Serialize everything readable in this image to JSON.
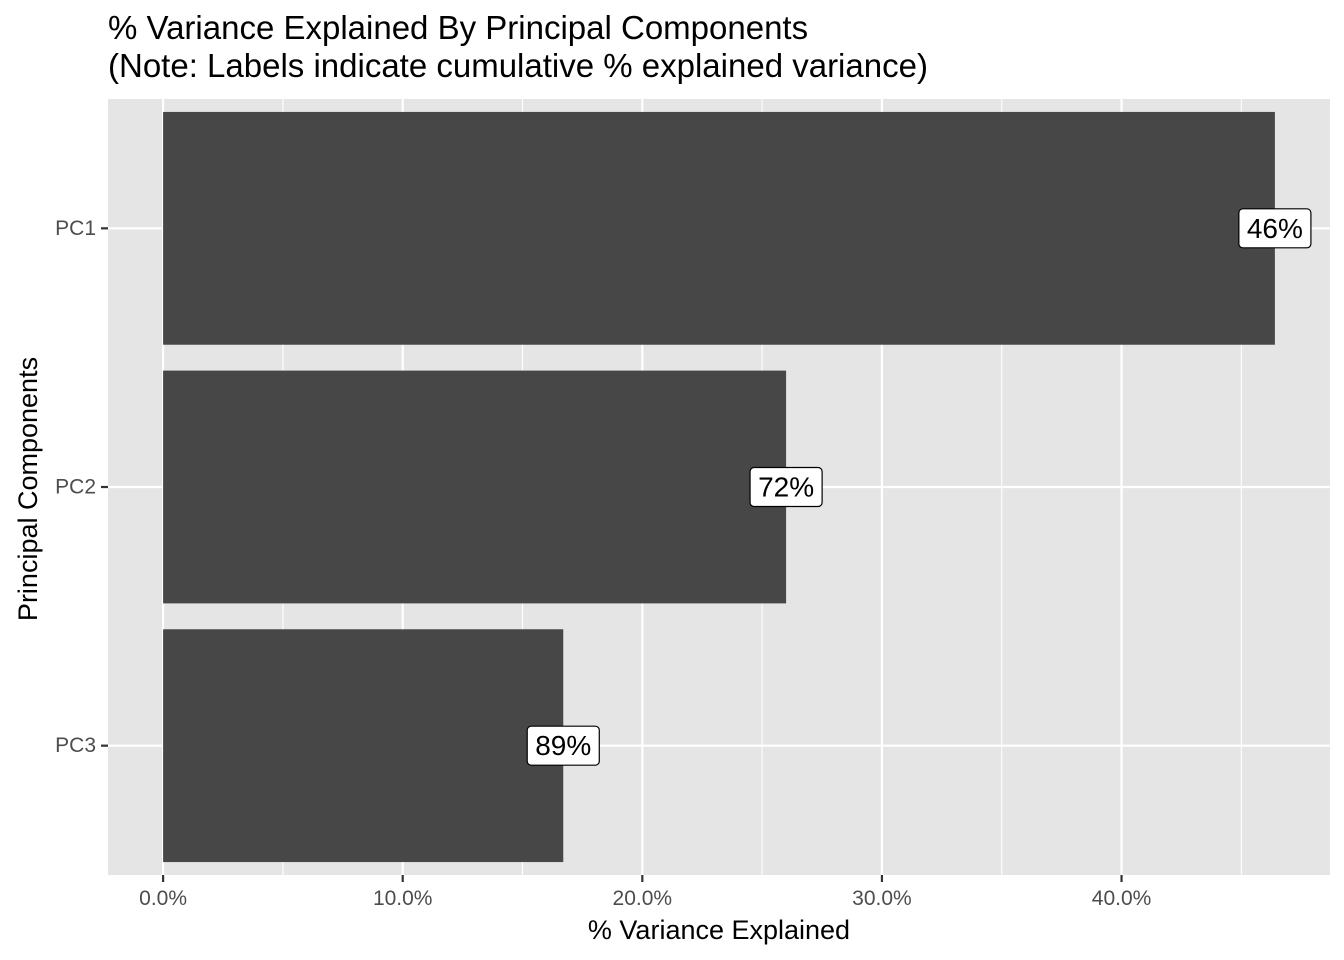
{
  "chart_data": {
    "type": "bar",
    "orientation": "horizontal",
    "title": "% Variance Explained By Principal Components",
    "subtitle": "(Note: Labels indicate cumulative % explained variance)",
    "xlabel": "% Variance Explained",
    "ylabel": "Principal Components",
    "categories": [
      "PC1",
      "PC2",
      "PC3"
    ],
    "values": [
      46.4,
      26.0,
      16.7
    ],
    "cumulative_labels": [
      "46%",
      "72%",
      "89%"
    ],
    "xlim": [
      -2.3,
      48.7
    ],
    "x_ticks": [
      0,
      10,
      20,
      30,
      40
    ],
    "x_tick_labels": [
      "0.0%",
      "10.0%",
      "20.0%",
      "30.0%",
      "40.0%"
    ],
    "grid": true,
    "legend": "none",
    "colors": {
      "panel_background": "#e5e5e5",
      "grid_line": "#ffffff",
      "bar_fill": "#474747",
      "label_fill": "#ffffff",
      "label_border": "#000000",
      "tick_text": "#4d4d4d"
    }
  }
}
